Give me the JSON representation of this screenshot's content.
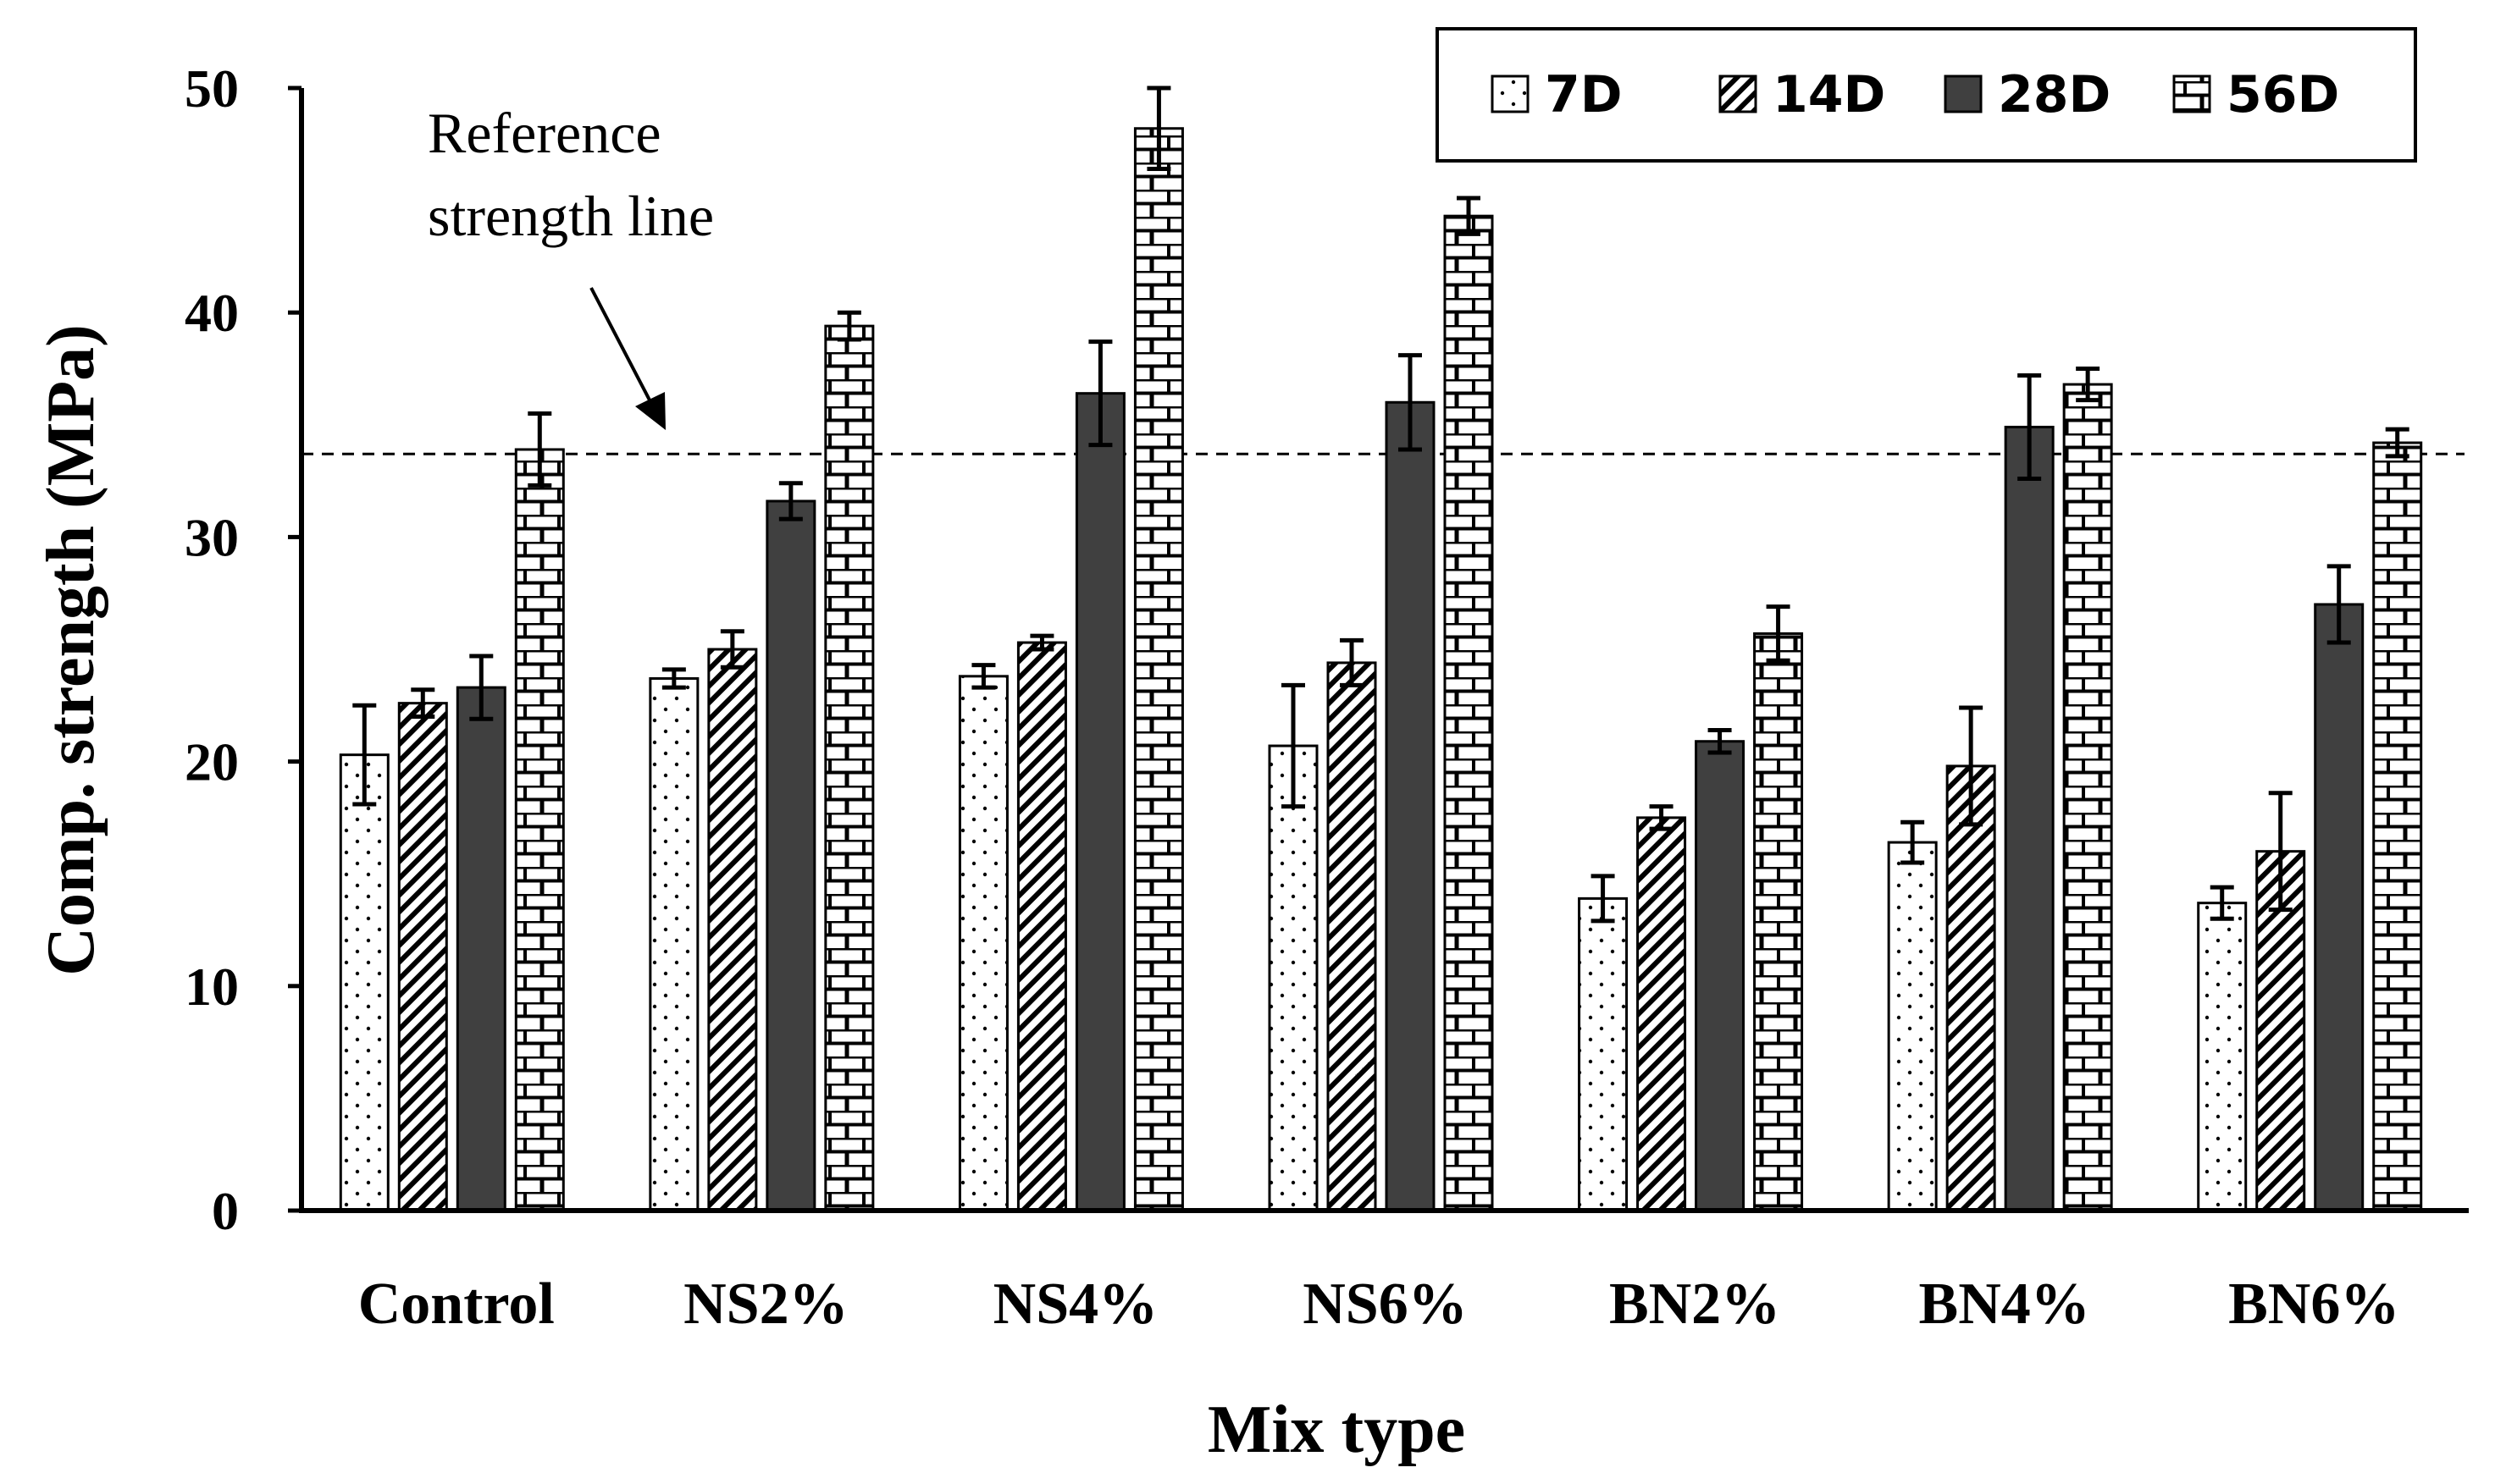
{
  "chart_data": {
    "type": "bar",
    "title": "",
    "xlabel": "Mix type",
    "ylabel": "Comp. strength (MPa)",
    "ylim": [
      0,
      50
    ],
    "yticks": [
      "0",
      "10",
      "20",
      "30",
      "40",
      "50"
    ],
    "categories": [
      "Control",
      "NS2%",
      "NS4%",
      "NS6%",
      "BN2%",
      "BN4%",
      "BN6%"
    ],
    "series": [
      {
        "name": "7D",
        "pattern": "dots",
        "values": [
          20.3,
          23.7,
          23.8,
          20.7,
          13.9,
          16.4,
          13.7
        ],
        "errors": [
          2.2,
          0.4,
          0.5,
          2.7,
          1.0,
          0.9,
          0.7
        ]
      },
      {
        "name": "14D",
        "pattern": "diagonal",
        "values": [
          22.6,
          25.0,
          25.3,
          24.4,
          17.5,
          19.8,
          16.0
        ],
        "errors": [
          0.6,
          0.8,
          0.3,
          1.0,
          0.5,
          2.6,
          2.6
        ]
      },
      {
        "name": "28D",
        "pattern": "solid",
        "values": [
          23.3,
          31.6,
          36.4,
          36.0,
          20.9,
          34.9,
          27.0
        ],
        "errors": [
          1.4,
          0.8,
          2.3,
          2.1,
          0.5,
          2.3,
          1.7
        ]
      },
      {
        "name": "56D",
        "pattern": "brick",
        "values": [
          33.9,
          39.4,
          48.2,
          44.3,
          25.7,
          36.8,
          34.2
        ],
        "errors": [
          1.6,
          0.6,
          1.8,
          0.8,
          1.2,
          0.7,
          0.6
        ]
      }
    ],
    "reference_line": {
      "value": 33.7,
      "label_line1": "Reference",
      "label_line2": "strength line"
    },
    "legend_position": "top-right",
    "grid": false,
    "colors": {
      "axis": "#000000",
      "bar_outline": "#000000",
      "solid_fill": "#404040",
      "pattern_fill": "#ffffff"
    }
  }
}
